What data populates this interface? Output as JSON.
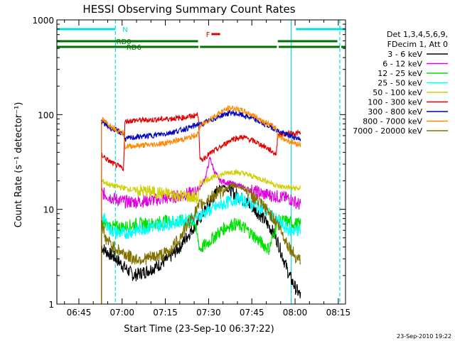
{
  "chart_data": {
    "type": "line",
    "title": "HESSI Observing Summary Count Rates",
    "xlabel": "Start Time (23-Sep-10 06:37:22)",
    "ylabel": "Count Rate (s⁻¹ detector⁻¹)",
    "y_scale": "log",
    "ylim": [
      1,
      1000
    ],
    "xlim": [
      "06:37:22",
      "08:17:30"
    ],
    "x_ticks": [
      "06:45",
      "07:00",
      "07:15",
      "07:30",
      "07:45",
      "08:00",
      "08:15"
    ],
    "y_ticks": [
      "1",
      "10",
      "100",
      "1000"
    ],
    "footer": "23-Sep-2010 19:22",
    "legend": {
      "placement": "right",
      "header": [
        "Det 1,3,4,5,6,9,",
        "FDecim 1, Att 0"
      ]
    },
    "flags": [
      {
        "label": "N",
        "color": "#00e0e0",
        "segments": [
          [
            "06:37:22",
            "06:57:40"
          ],
          [
            "08:00:20",
            "08:17:30"
          ]
        ]
      },
      {
        "label": "F",
        "color": "#e00000",
        "segments": [
          [
            "07:31:00",
            "07:34:00"
          ]
        ]
      },
      {
        "label": "RD0",
        "color": "#007000",
        "segments": [
          [
            "06:37:22",
            "07:00:50"
          ],
          [
            "07:00:50",
            "07:26:20"
          ],
          [
            "07:54:00",
            "08:14:40"
          ]
        ]
      },
      {
        "label": "RD6",
        "color": "#007000",
        "segments": [
          [
            "06:37:22",
            "07:26:30"
          ],
          [
            "07:27:00",
            "07:53:40"
          ],
          [
            "07:54:20",
            "08:15:30"
          ],
          [
            "08:16:00",
            "08:17:30"
          ]
        ]
      }
    ],
    "markers": [
      {
        "time": "06:37:22",
        "color": "#00e0e0",
        "style": "solid"
      },
      {
        "time": "06:57:40",
        "color": "#00e0e0",
        "style": "dashed"
      },
      {
        "time": "07:58:40",
        "color": "#00e0e0",
        "style": "solid"
      },
      {
        "time": "08:15:30",
        "color": "#00e0e0",
        "style": "dashed"
      }
    ],
    "series": [
      {
        "name": "3 - 6 keV",
        "color": "#000000",
        "x": [
          "06:52:50",
          "06:55:00",
          "06:58:00",
          "07:00:30",
          "07:04:00",
          "07:08:00",
          "07:12:00",
          "07:16:00",
          "07:20:00",
          "07:24:00",
          "07:27:00",
          "07:29:00",
          "07:31:00",
          "07:33:00",
          "07:35:00",
          "07:37:00",
          "07:40:00",
          "07:43:00",
          "07:46:00",
          "07:49:00",
          "07:52:00",
          "07:54:00",
          "07:56:00",
          "07:58:00",
          "08:00:00",
          "08:02:00"
        ],
        "values": [
          4,
          3.5,
          3,
          2.5,
          2,
          2.2,
          2.5,
          3,
          4,
          6,
          8,
          10,
          12,
          16,
          18,
          16,
          14,
          12,
          10,
          8,
          6,
          4.5,
          3,
          2,
          1.5,
          1.2
        ]
      },
      {
        "name": "6 - 12 keV",
        "color": "#e000e0",
        "x": [
          "06:52:50",
          "06:57:00",
          "07:01:00",
          "07:05:00",
          "07:10:00",
          "07:15:00",
          "07:20:00",
          "07:25:00",
          "07:27:00",
          "07:29:00",
          "07:30:30",
          "07:32:00",
          "07:34:00",
          "07:37:00",
          "07:40:00",
          "07:43:00",
          "07:46:00",
          "07:49:00",
          "07:52:00",
          "07:55:00",
          "07:58:00",
          "08:00:00",
          "08:02:00"
        ],
        "values": [
          15,
          13,
          12,
          12,
          12.5,
          13,
          14,
          15,
          17,
          22,
          35,
          25,
          20,
          19,
          18,
          16.5,
          15.5,
          14.5,
          14,
          13.5,
          13,
          12,
          11
        ]
      },
      {
        "name": "12 - 25 keV",
        "color": "#00e000",
        "x": [
          "06:52:50",
          "06:57:00",
          "07:01:00",
          "07:05:00",
          "07:10:00",
          "07:15:00",
          "07:20:00",
          "07:25:00",
          "07:27:00",
          "07:30:00",
          "07:33:00",
          "07:36:00",
          "07:39:00",
          "07:42:00",
          "07:45:00",
          "07:48:00",
          "07:51:00",
          "07:54:00",
          "07:57:00",
          "08:00:00",
          "08:02:00"
        ],
        "values": [
          7,
          6.5,
          6.5,
          7,
          7,
          7.5,
          7.5,
          7.5,
          3.8,
          4.5,
          5.5,
          6.5,
          7,
          6.5,
          5.5,
          4.5,
          3.8,
          7.5,
          7.5,
          7,
          7
        ]
      },
      {
        "name": "25 - 50 keV",
        "color": "#00ffff",
        "x": [
          "06:52:50",
          "06:56:00",
          "07:00:00",
          "07:05:00",
          "07:10:00",
          "07:15:00",
          "07:20:00",
          "07:25:00",
          "07:28:00",
          "07:31:00",
          "07:34:00",
          "07:37:00",
          "07:40:00",
          "07:43:00",
          "07:46:00",
          "07:49:00",
          "07:52:00",
          "07:55:00",
          "07:58:00",
          "08:02:00"
        ],
        "values": [
          9,
          6,
          5.5,
          6,
          6.5,
          7,
          7.5,
          8,
          9,
          10,
          11,
          12,
          13,
          12,
          11,
          10,
          8.5,
          7,
          6,
          6
        ]
      },
      {
        "name": "50 - 100 keV",
        "color": "#d0d000",
        "x": [
          "06:52:50",
          "06:56:00",
          "07:00:00",
          "07:04:00",
          "07:08:00",
          "07:12:00",
          "07:16:00",
          "07:20:00",
          "07:24:00",
          "07:26:30",
          "07:27:00",
          "07:30:00",
          "07:34:00",
          "07:38:00",
          "07:42:00",
          "07:46:00",
          "07:50:00",
          "07:53:30",
          "07:54:00",
          "07:58:00",
          "08:02:00"
        ],
        "values": [
          20,
          18,
          17,
          16,
          15.5,
          15,
          14.5,
          14,
          13.5,
          13,
          19,
          21,
          23,
          25,
          24,
          22,
          20,
          18,
          17.5,
          17,
          16.5
        ]
      },
      {
        "name": "100 - 300 keV",
        "color": "#e00000",
        "x": [
          "06:52:50",
          "06:55:00",
          "06:58:00",
          "07:00:30",
          "07:01:00",
          "07:05:00",
          "07:10:00",
          "07:15:00",
          "07:20:00",
          "07:24:00",
          "07:26:30",
          "07:27:00",
          "07:30:00",
          "07:34:00",
          "07:38:00",
          "07:42:00",
          "07:46:00",
          "07:50:00",
          "07:53:30",
          "07:54:00",
          "07:58:00",
          "08:02:00"
        ],
        "values": [
          38,
          33,
          29,
          27,
          85,
          87,
          88,
          90,
          92,
          96,
          100,
          32,
          38,
          45,
          55,
          58,
          52,
          45,
          38,
          62,
          63,
          64
        ]
      },
      {
        "name": "300 - 800 keV",
        "color": "#0000c0",
        "x": [
          "06:52:50",
          "06:55:00",
          "06:58:00",
          "07:00:30",
          "07:01:00",
          "07:05:00",
          "07:10:00",
          "07:15:00",
          "07:20:00",
          "07:24:00",
          "07:26:30",
          "07:27:00",
          "07:31:00",
          "07:35:00",
          "07:38:00",
          "07:41:00",
          "07:45:00",
          "07:49:00",
          "07:53:30",
          "07:54:00",
          "07:58:00",
          "08:02:00"
        ],
        "values": [
          85,
          75,
          68,
          62,
          55,
          58,
          60,
          63,
          68,
          74,
          80,
          78,
          88,
          100,
          105,
          100,
          92,
          80,
          70,
          67,
          60,
          55
        ]
      },
      {
        "name": "800 - 7000 keV",
        "color": "#ff8800",
        "x": [
          "06:52:50",
          "06:55:00",
          "06:58:00",
          "07:00:30",
          "07:01:00",
          "07:05:00",
          "07:10:00",
          "07:15:00",
          "07:20:00",
          "07:24:00",
          "07:26:30",
          "07:27:00",
          "07:31:00",
          "07:35:00",
          "07:38:00",
          "07:41:00",
          "07:45:00",
          "07:49:00",
          "07:53:30",
          "07:54:00",
          "07:58:00",
          "08:02:00"
        ],
        "values": [
          90,
          80,
          70,
          64,
          46,
          47,
          48,
          50,
          54,
          58,
          63,
          75,
          92,
          110,
          118,
          112,
          100,
          85,
          72,
          60,
          52,
          48
        ]
      },
      {
        "name": "7000 - 20000 keV",
        "color": "#807000",
        "x": [
          "06:52:50",
          "06:54:00",
          "06:57:00",
          "07:00:00",
          "07:04:00",
          "07:08:00",
          "07:12:00",
          "07:16:00",
          "07:20:00",
          "07:24:00",
          "07:27:00",
          "07:30:00",
          "07:34:00",
          "07:38:00",
          "07:42:00",
          "07:46:00",
          "07:50:00",
          "07:54:00",
          "07:57:00",
          "08:00:00",
          "08:02:00"
        ],
        "values": [
          8,
          5,
          4,
          3.5,
          3,
          3,
          3.2,
          3.5,
          5,
          8,
          11,
          13,
          15,
          18,
          17,
          13,
          10,
          7,
          4.5,
          3.2,
          3
        ]
      }
    ]
  }
}
